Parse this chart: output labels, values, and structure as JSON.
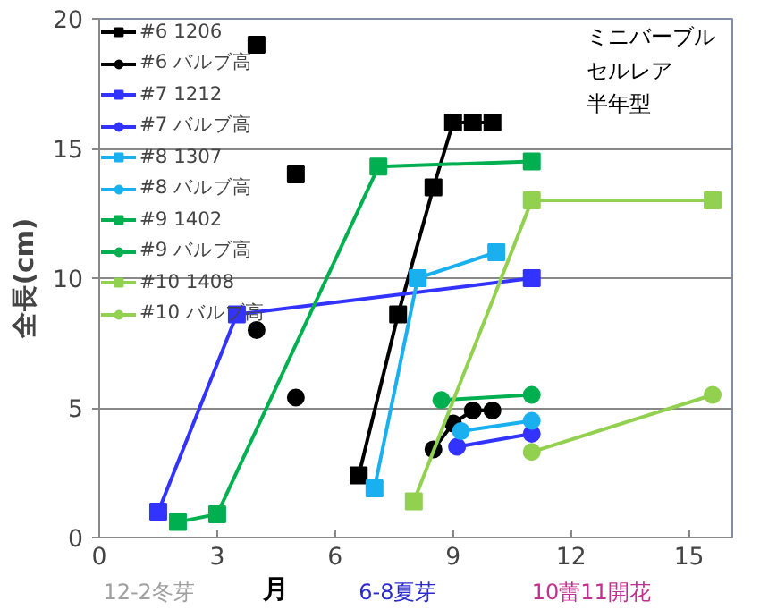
{
  "chart_data": {
    "type": "line",
    "xlabel": "月",
    "ylabel": "全長(cm)",
    "xlim": [
      0,
      16.1
    ],
    "ylim": [
      0,
      20
    ],
    "xticks": [
      0,
      3,
      6,
      9,
      12,
      15
    ],
    "yticks": [
      0,
      5,
      10,
      15,
      20
    ],
    "grid": "y",
    "legend": "top left",
    "line_style": "solid",
    "annotations": [
      "ミニバーブル",
      "セルレア",
      "半年型",
      "12-2冬芽",
      "6-8夏芽",
      "10蕾11開花"
    ],
    "series": [
      {
        "name": "#6 1206",
        "color": "#000000",
        "marker": "square",
        "x": [
          4,
          null,
          5,
          null,
          6.6,
          7.6,
          8.5,
          9,
          9.5,
          10
        ],
        "values": [
          19,
          null,
          14,
          null,
          2.4,
          8.6,
          13.5,
          16,
          16,
          16
        ]
      },
      {
        "name": "#6 バルブ高",
        "color": "#000000",
        "marker": "circle",
        "x": [
          4,
          null,
          5,
          null,
          8.5,
          9,
          9.5,
          10
        ],
        "values": [
          8,
          null,
          5.4,
          null,
          3.4,
          4.4,
          4.9,
          4.9
        ]
      },
      {
        "name": "#7 1212",
        "color": "#3333ff",
        "marker": "square",
        "x": [
          1.5,
          3.5,
          11
        ],
        "values": [
          1,
          8.6,
          10
        ]
      },
      {
        "name": "#7 バルブ高",
        "color": "#3333ff",
        "marker": "circle",
        "x": [
          9.1,
          11
        ],
        "values": [
          3.5,
          4
        ]
      },
      {
        "name": "#8 1307",
        "color": "#1ab0f0",
        "marker": "square",
        "x": [
          7,
          8.1,
          10.1
        ],
        "values": [
          1.9,
          10,
          11
        ]
      },
      {
        "name": "#8 バルブ高",
        "color": "#1ab0f0",
        "marker": "circle",
        "x": [
          9.2,
          11
        ],
        "values": [
          4.1,
          4.5
        ]
      },
      {
        "name": "#9 1402",
        "color": "#00b050",
        "marker": "square",
        "x": [
          2,
          3,
          7.1,
          11
        ],
        "values": [
          0.6,
          0.9,
          14.3,
          14.5
        ]
      },
      {
        "name": "#9 バルブ高",
        "color": "#00b050",
        "marker": "circle",
        "x": [
          8.7,
          11
        ],
        "values": [
          5.3,
          5.5
        ]
      },
      {
        "name": "#10 1408",
        "color": "#92d050",
        "marker": "square",
        "x": [
          8,
          11,
          15.6
        ],
        "values": [
          1.4,
          13,
          13
        ]
      },
      {
        "name": "#10 バルブ高",
        "color": "#92d050",
        "marker": "circle",
        "x": [
          11,
          15.6
        ],
        "values": [
          3.3,
          5.5
        ]
      }
    ]
  }
}
